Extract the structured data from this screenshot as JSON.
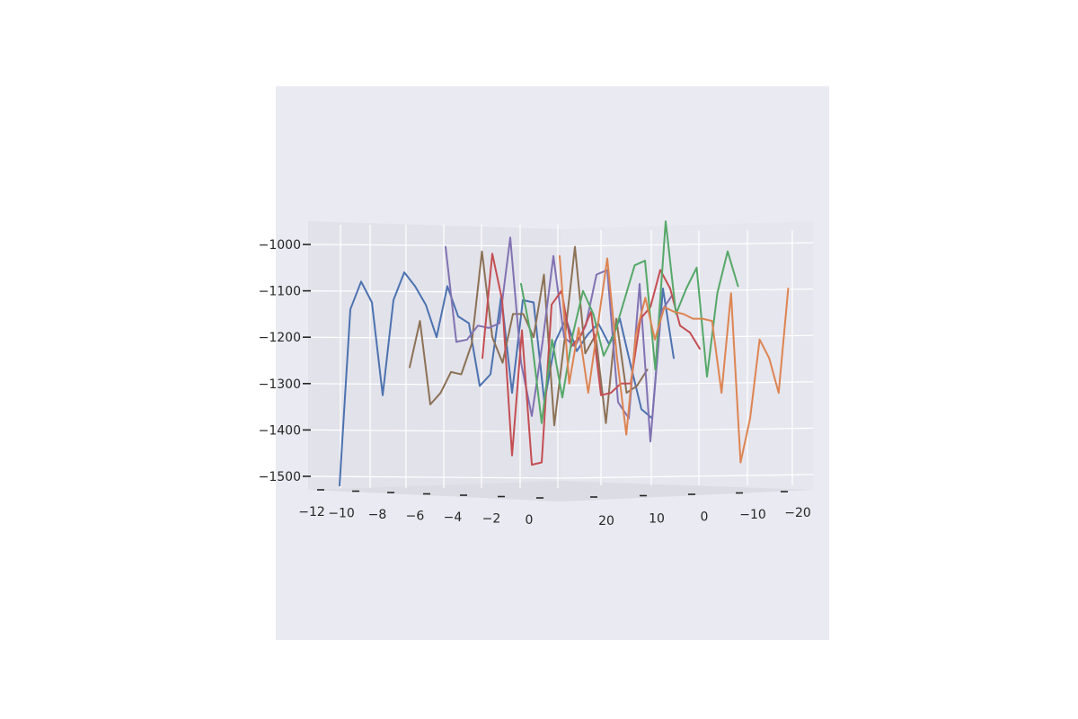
{
  "chart_data": {
    "type": "line",
    "projection": "3d",
    "title": "",
    "xlabel": "",
    "ylabel": "",
    "zlabel": "",
    "grid": true,
    "legend": "none",
    "colors": {
      "figure_background": "#ffffff",
      "axes_background": "#eaeaf2",
      "pane_left": "#e2e2ea",
      "pane_right": "#e6e6ee",
      "floor": "#dcdce4",
      "grid": "#ffffff",
      "tick_text": "#262626"
    },
    "x_ticks": [
      "−12",
      "−10",
      "−8",
      "−6",
      "−4",
      "−2",
      "0"
    ],
    "y_ticks": [
      "20",
      "10",
      "0",
      "−10",
      "−20"
    ],
    "z_ticks": [
      "−1000",
      "−1100",
      "−1200",
      "−1300",
      "−1400",
      "−1500"
    ],
    "zlim": [
      -1530,
      -940
    ],
    "series": [
      {
        "color": "#4c72b0",
        "values": [
          -1520,
          -1140,
          -1080,
          -1125,
          -1325,
          -1120,
          -1060,
          -1090,
          -1130,
          -1200,
          -1090,
          -1155,
          -1170,
          -1305,
          -1280,
          -1110,
          -1320,
          -1120,
          -1125,
          -1340,
          -1210,
          -1160,
          -1230,
          -1195,
          -1170,
          -1215,
          -1160,
          -1260,
          -1355,
          -1375,
          -1095,
          -1245
        ]
      },
      {
        "color": "#8c7155",
        "values": [
          -1265,
          -1165,
          -1345,
          -1320,
          -1275,
          -1280,
          -1215,
          -1015,
          -1200,
          -1255,
          -1150,
          -1150,
          -1200,
          -1065,
          -1390,
          -1205,
          -1005,
          -1235,
          -1195,
          -1385,
          -1160,
          -1320,
          -1305,
          -1270
        ]
      },
      {
        "color": "#8172b2",
        "values": [
          -1005,
          -1210,
          -1205,
          -1175,
          -1180,
          -1170,
          -985,
          -1255,
          -1370,
          -1210,
          -1025,
          -1200,
          -1220,
          -1175,
          -1065,
          -1055,
          -1340,
          -1375,
          -1085,
          -1425,
          -1145,
          -1110
        ]
      },
      {
        "color": "#c44e52",
        "values": [
          -1245,
          -1020,
          -1120,
          -1455,
          -1185,
          -1475,
          -1470,
          -1130,
          -1100,
          -1220,
          -1195,
          -1145,
          -1325,
          -1320,
          -1300,
          -1300,
          -1160,
          -1135,
          -1055,
          -1095,
          -1175,
          -1190,
          -1225
        ]
      },
      {
        "color": "#55a868",
        "values": [
          -1085,
          -1200,
          -1385,
          -1205,
          -1330,
          -1195,
          -1100,
          -1150,
          -1240,
          -1195,
          -1120,
          -1045,
          -1035,
          -1270,
          -950,
          -1150,
          -1095,
          -1050,
          -1285,
          -1105,
          -1015,
          -1090
        ]
      },
      {
        "color": "#dd8452",
        "values": [
          -1025,
          -1300,
          -1180,
          -1320,
          -1175,
          -1030,
          -1240,
          -1410,
          -1195,
          -1115,
          -1205,
          -1135,
          -1145,
          -1150,
          -1160,
          -1160,
          -1165,
          -1320,
          -1105,
          -1470,
          -1375,
          -1205,
          -1245,
          -1320,
          -1095
        ]
      }
    ]
  }
}
